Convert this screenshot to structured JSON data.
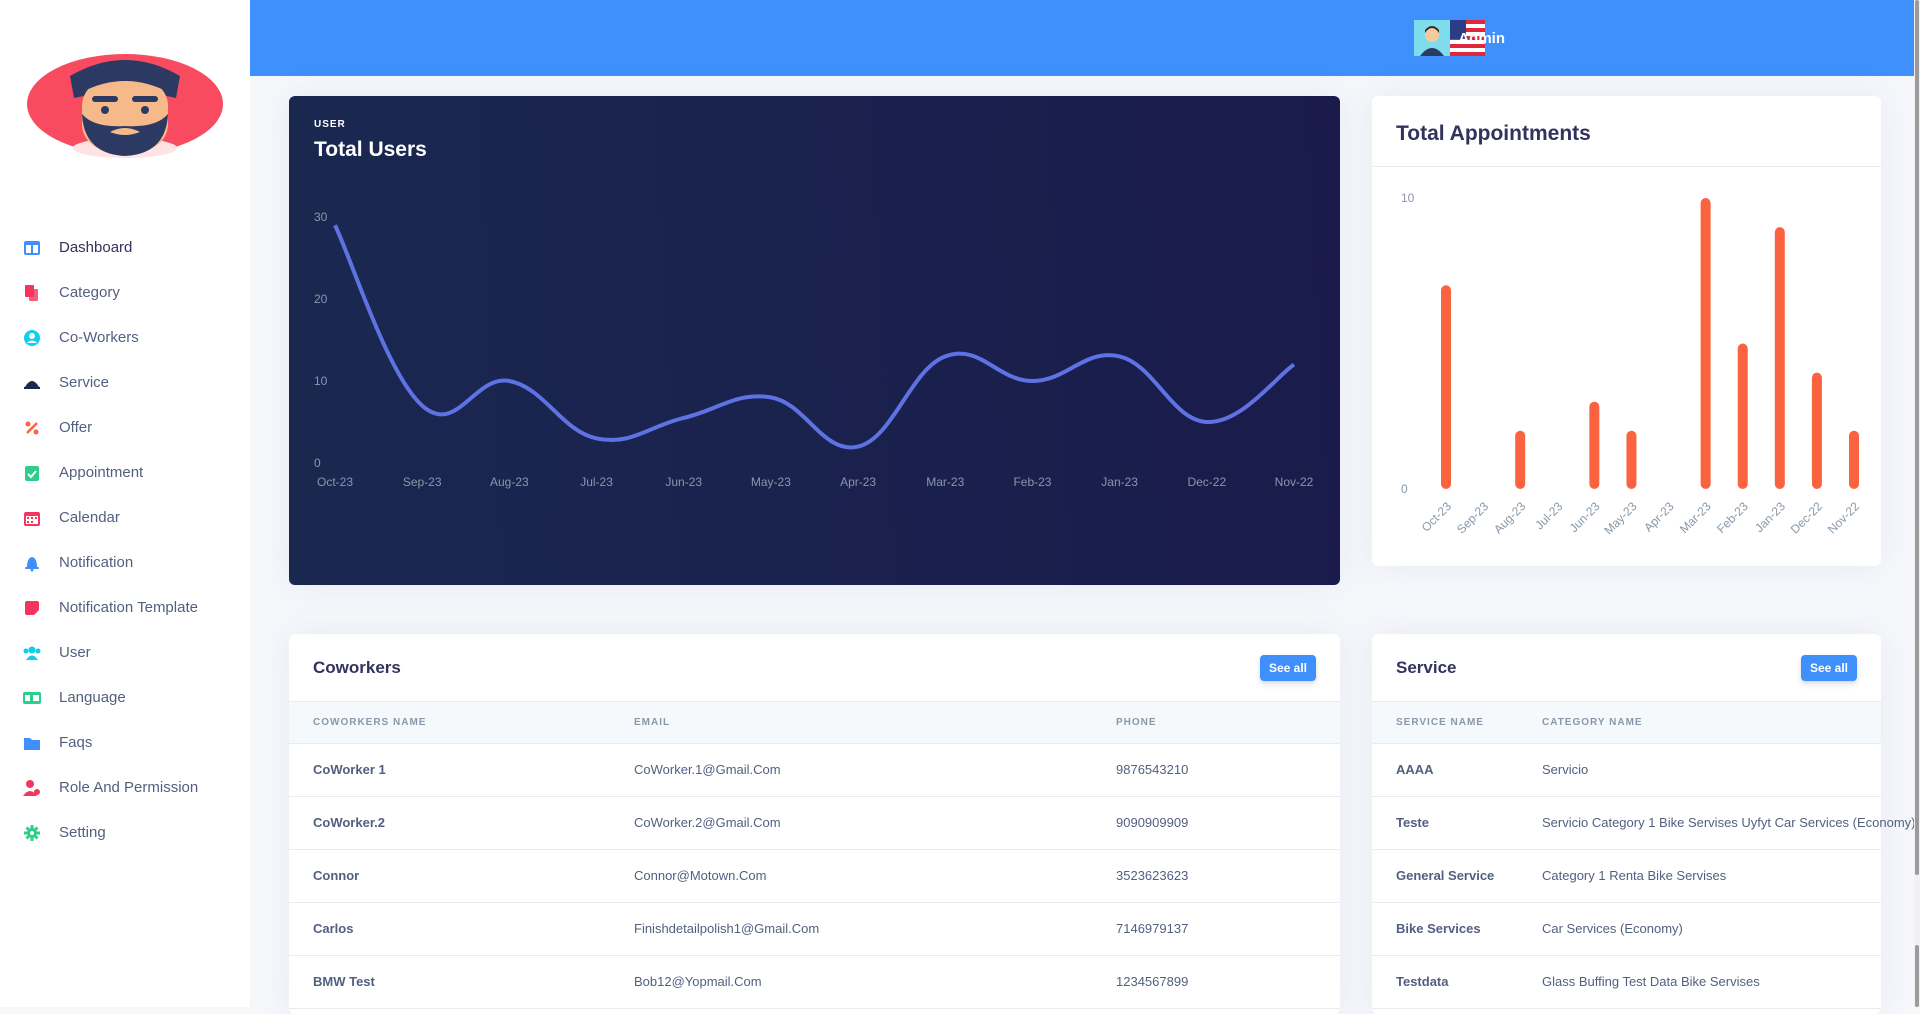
{
  "sidebar": {
    "items": [
      {
        "label": "Dashboard",
        "icon": "dashboard-icon",
        "color": "#3f8ffd"
      },
      {
        "label": "Category",
        "icon": "category-icon",
        "color": "#f5365c"
      },
      {
        "label": "Co-Workers",
        "icon": "coworkers-icon",
        "color": "#11cdef"
      },
      {
        "label": "Service",
        "icon": "service-icon",
        "color": "#172b4d"
      },
      {
        "label": "Offer",
        "icon": "offer-icon",
        "color": "#fb6340"
      },
      {
        "label": "Appointment",
        "icon": "appointment-icon",
        "color": "#2dce89"
      },
      {
        "label": "Calendar",
        "icon": "calendar-icon",
        "color": "#f5365c"
      },
      {
        "label": "Notification",
        "icon": "bell-icon",
        "color": "#3f8ffd"
      },
      {
        "label": "Notification Template",
        "icon": "template-icon",
        "color": "#f5365c"
      },
      {
        "label": "User",
        "icon": "users-icon",
        "color": "#11cdef"
      },
      {
        "label": "Language",
        "icon": "language-icon",
        "color": "#2dce89"
      },
      {
        "label": "Faqs",
        "icon": "faqs-icon",
        "color": "#3f8ffd"
      },
      {
        "label": "Role And Permission",
        "icon": "role-icon",
        "color": "#f5365c"
      },
      {
        "label": "Setting",
        "icon": "gear-icon",
        "color": "#2dce89"
      }
    ]
  },
  "header": {
    "username": "Admin",
    "accent": "#3f8ffd"
  },
  "users_card": {
    "overline": "USER",
    "title": "Total Users"
  },
  "appointments_card": {
    "title": "Total Appointments"
  },
  "chart_data": [
    {
      "type": "line",
      "title": "Total Users",
      "categories": [
        "Oct-23",
        "Sep-23",
        "Aug-23",
        "Jul-23",
        "Jun-23",
        "May-23",
        "Apr-23",
        "Mar-23",
        "Feb-23",
        "Jan-23",
        "Dec-22",
        "Nov-22"
      ],
      "values": [
        29,
        7,
        10,
        3,
        5.5,
        8,
        2,
        13,
        10,
        13,
        5,
        12
      ],
      "ylim": [
        0,
        30
      ],
      "yticks": [
        0,
        10,
        20,
        30
      ],
      "color": "#5e72e4",
      "grid": false
    },
    {
      "type": "bar",
      "title": "Total Appointments",
      "categories": [
        "Oct-23",
        "Sep-23",
        "Aug-23",
        "Jul-23",
        "Jun-23",
        "May-23",
        "Apr-23",
        "Mar-23",
        "Feb-23",
        "Jan-23",
        "Dec-22",
        "Nov-22"
      ],
      "values": [
        7,
        0,
        2,
        0,
        3,
        2,
        0,
        10,
        5,
        9,
        4,
        2
      ],
      "ylim": [
        0,
        10
      ],
      "yticks": [
        0,
        10
      ],
      "color": "#fb6340",
      "grid": false
    }
  ],
  "coworkers": {
    "title": "Coworkers",
    "see_all": "See all",
    "columns": [
      "COWORKERS NAME",
      "EMAIL",
      "PHONE"
    ],
    "rows": [
      [
        "CoWorker 1",
        "CoWorker.1@Gmail.Com",
        "9876543210"
      ],
      [
        "CoWorker.2",
        "CoWorker.2@Gmail.Com",
        "9090909909"
      ],
      [
        "Connor",
        "Connor@Motown.Com",
        "3523623623"
      ],
      [
        "Carlos",
        "Finishdetailpolish1@Gmail.Com",
        "7146979137"
      ],
      [
        "BMW Test",
        "Bob12@Yopmail.Com",
        "1234567899"
      ]
    ]
  },
  "services": {
    "title": "Service",
    "see_all": "See all",
    "columns": [
      "SERVICE NAME",
      "CATEGORY NAME"
    ],
    "rows": [
      [
        "AAAA",
        "Servicio"
      ],
      [
        "Teste",
        "Servicio Category 1 Bike Servises Uyfyt Car Services (Economy)"
      ],
      [
        "General Service",
        "Category 1 Renta Bike Servises"
      ],
      [
        "Bike Services",
        "Car Services (Economy)"
      ],
      [
        "Testdata",
        "Glass Buffing Test Data Bike Servises"
      ]
    ]
  }
}
